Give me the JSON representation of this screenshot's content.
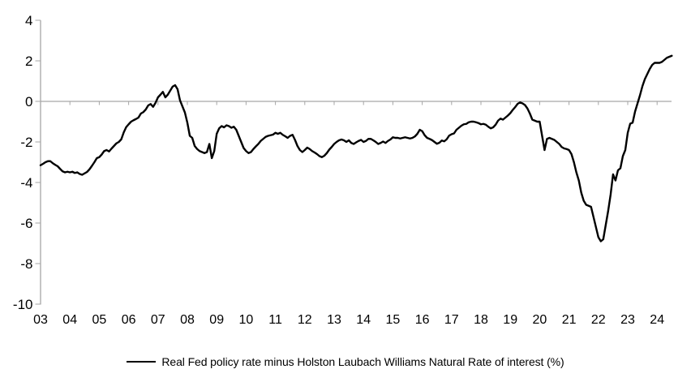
{
  "chart_data": {
    "type": "line",
    "title": "",
    "background_color": "#ffffff",
    "axis_color": "#a6a6a6",
    "text_color": "#000000",
    "grid": "zero-baseline-only",
    "legend_position": "bottom-center",
    "ylim": [
      -10,
      4
    ],
    "y_ticks": [
      4,
      2,
      0,
      -2,
      -4,
      -6,
      -8,
      -10
    ],
    "y_tick_labels": [
      "4",
      "2",
      "0",
      "-2",
      "-4",
      "-6",
      "-8",
      "-10"
    ],
    "x_tick_labels": [
      "03",
      "04",
      "05",
      "06",
      "07",
      "08",
      "09",
      "10",
      "11",
      "12",
      "13",
      "14",
      "15",
      "16",
      "17",
      "18",
      "19",
      "20",
      "21",
      "22",
      "23",
      "24"
    ],
    "x_start_year": 2003,
    "points_per_year": 12,
    "series": [
      {
        "name": "Real Fed policy rate minus Holston Laubach Williams Natural Rate of interest (%)",
        "color": "#000000",
        "values": [
          -3.15,
          -3.08,
          -3.0,
          -2.95,
          -2.95,
          -3.05,
          -3.13,
          -3.2,
          -3.33,
          -3.45,
          -3.5,
          -3.47,
          -3.5,
          -3.47,
          -3.53,
          -3.5,
          -3.58,
          -3.62,
          -3.55,
          -3.48,
          -3.35,
          -3.18,
          -3.0,
          -2.8,
          -2.75,
          -2.62,
          -2.45,
          -2.4,
          -2.47,
          -2.33,
          -2.2,
          -2.07,
          -2.0,
          -1.87,
          -1.53,
          -1.27,
          -1.13,
          -1.0,
          -0.93,
          -0.87,
          -0.8,
          -0.6,
          -0.53,
          -0.4,
          -0.2,
          -0.13,
          -0.27,
          -0.07,
          0.2,
          0.33,
          0.47,
          0.2,
          0.33,
          0.53,
          0.73,
          0.8,
          0.6,
          0.05,
          -0.25,
          -0.55,
          -1.05,
          -1.7,
          -1.8,
          -2.2,
          -2.35,
          -2.45,
          -2.5,
          -2.55,
          -2.5,
          -2.1,
          -2.8,
          -2.45,
          -1.6,
          -1.33,
          -1.22,
          -1.28,
          -1.18,
          -1.22,
          -1.3,
          -1.25,
          -1.4,
          -1.7,
          -2.0,
          -2.3,
          -2.45,
          -2.55,
          -2.5,
          -2.35,
          -2.22,
          -2.1,
          -1.95,
          -1.85,
          -1.75,
          -1.7,
          -1.67,
          -1.64,
          -1.55,
          -1.6,
          -1.55,
          -1.65,
          -1.72,
          -1.8,
          -1.7,
          -1.65,
          -1.9,
          -2.2,
          -2.4,
          -2.5,
          -2.4,
          -2.28,
          -2.35,
          -2.45,
          -2.52,
          -2.6,
          -2.7,
          -2.75,
          -2.68,
          -2.55,
          -2.38,
          -2.25,
          -2.1,
          -2.0,
          -1.92,
          -1.88,
          -1.92,
          -2.0,
          -1.92,
          -2.05,
          -2.1,
          -2.02,
          -1.95,
          -1.9,
          -2.0,
          -1.95,
          -1.85,
          -1.85,
          -1.92,
          -2.0,
          -2.1,
          -2.05,
          -1.98,
          -2.05,
          -1.95,
          -1.88,
          -1.77,
          -1.8,
          -1.8,
          -1.83,
          -1.8,
          -1.77,
          -1.8,
          -1.83,
          -1.8,
          -1.73,
          -1.6,
          -1.4,
          -1.47,
          -1.67,
          -1.8,
          -1.85,
          -1.91,
          -2.0,
          -2.09,
          -2.04,
          -1.93,
          -1.97,
          -1.87,
          -1.69,
          -1.62,
          -1.58,
          -1.4,
          -1.3,
          -1.2,
          -1.13,
          -1.11,
          -1.03,
          -1.0,
          -1.0,
          -1.03,
          -1.07,
          -1.13,
          -1.11,
          -1.15,
          -1.25,
          -1.33,
          -1.28,
          -1.15,
          -0.95,
          -0.85,
          -0.9,
          -0.8,
          -0.7,
          -0.58,
          -0.42,
          -0.28,
          -0.12,
          -0.05,
          -0.1,
          -0.18,
          -0.35,
          -0.6,
          -0.9,
          -0.95,
          -1.0,
          -1.0,
          -1.7,
          -2.4,
          -1.85,
          -1.8,
          -1.85,
          -1.9,
          -2.0,
          -2.1,
          -2.25,
          -2.32,
          -2.35,
          -2.4,
          -2.6,
          -3.0,
          -3.5,
          -3.9,
          -4.5,
          -4.9,
          -5.1,
          -5.15,
          -5.2,
          -5.7,
          -6.2,
          -6.7,
          -6.9,
          -6.8,
          -6.1,
          -5.4,
          -4.6,
          -3.6,
          -3.9,
          -3.4,
          -3.3,
          -2.7,
          -2.4,
          -1.55,
          -1.1,
          -1.05,
          -0.5,
          -0.1,
          0.3,
          0.75,
          1.1,
          1.35,
          1.6,
          1.8,
          1.9,
          1.9,
          1.9,
          1.95,
          2.05,
          2.15,
          2.2,
          2.25
        ]
      }
    ]
  }
}
